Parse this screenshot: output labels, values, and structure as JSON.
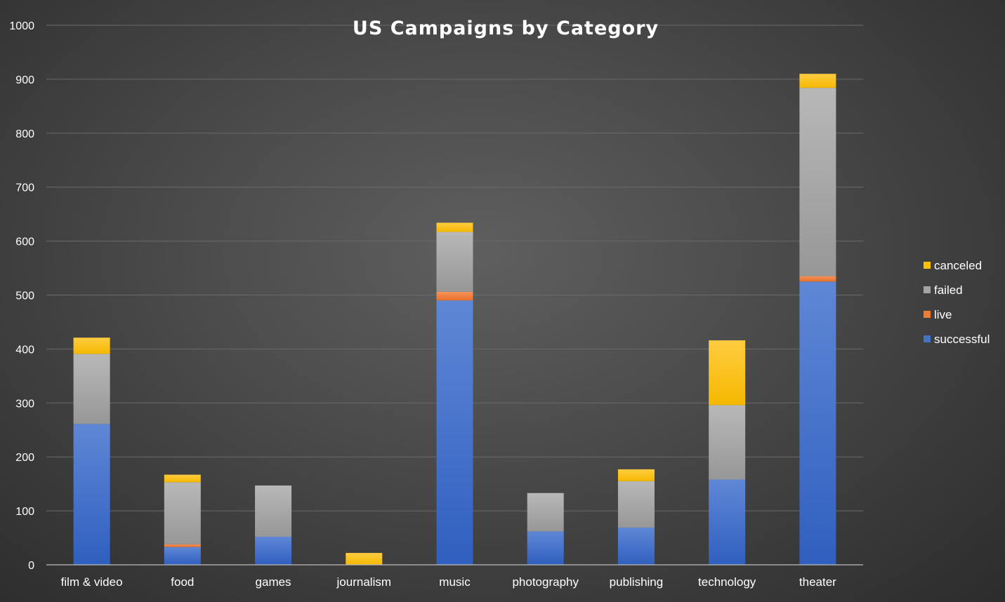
{
  "chart_data": {
    "type": "bar",
    "stacked": true,
    "title": "US Campaigns by Category",
    "xlabel": "",
    "ylabel": "",
    "categories": [
      "film & video",
      "food",
      "games",
      "journalism",
      "music",
      "photography",
      "publishing",
      "technology",
      "theater"
    ],
    "series": [
      {
        "name": "successful",
        "color": "#4472c4",
        "values": [
          261,
          33,
          52,
          0,
          490,
          62,
          69,
          158,
          525
        ]
      },
      {
        "name": "live",
        "color": "#ed7d31",
        "values": [
          0,
          5,
          0,
          0,
          16,
          0,
          0,
          0,
          10
        ]
      },
      {
        "name": "failed",
        "color": "#a5a5a5",
        "values": [
          130,
          115,
          95,
          0,
          111,
          71,
          86,
          138,
          349
        ]
      },
      {
        "name": "canceled",
        "color": "#ffc000",
        "values": [
          30,
          14,
          0,
          22,
          17,
          0,
          22,
          120,
          26
        ]
      }
    ],
    "ylim": [
      0,
      1000
    ],
    "yticks": [
      0,
      100,
      200,
      300,
      400,
      500,
      600,
      700,
      800,
      900,
      1000
    ],
    "grid": true,
    "legend": {
      "position": "right",
      "order": [
        "canceled",
        "failed",
        "live",
        "successful"
      ]
    }
  }
}
